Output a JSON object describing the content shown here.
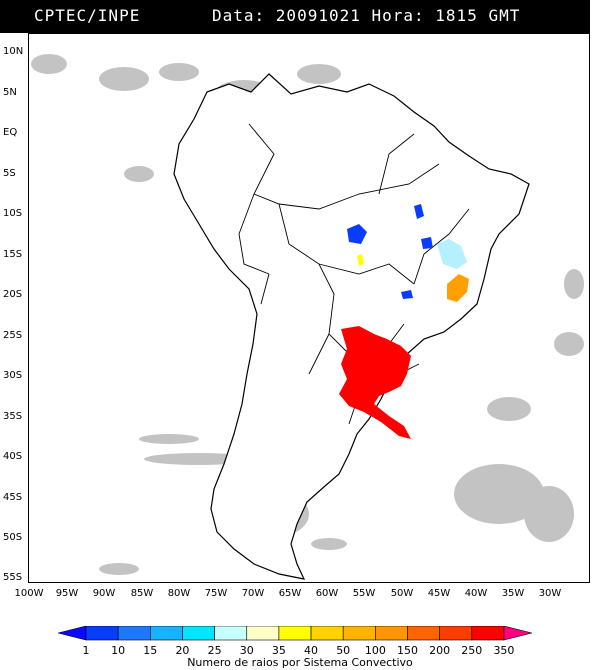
{
  "header": {
    "source": "CPTEC/INPE",
    "datetime": "Data: 20091021 Hora: 1815 GMT"
  },
  "map": {
    "latitude_labels": [
      "10N",
      "5N",
      "EQ",
      "5S",
      "10S",
      "15S",
      "20S",
      "25S",
      "30S",
      "35S",
      "40S",
      "45S",
      "50S",
      "55S"
    ],
    "longitude_labels": [
      "100W",
      "95W",
      "90W",
      "85W",
      "80W",
      "75W",
      "70W",
      "65W",
      "60W",
      "55W",
      "50W",
      "45W",
      "40W",
      "35W",
      "30W"
    ],
    "land_color": "#ffffff",
    "cloud_color": "#b9b9b9",
    "border_color": "#000000"
  },
  "legend": {
    "title": "Numero de raios por Sistema Convectivo",
    "values": [
      "1",
      "10",
      "15",
      "20",
      "25",
      "30",
      "35",
      "40",
      "50",
      "100",
      "150",
      "200",
      "250",
      "350"
    ],
    "colors": [
      "#0a0aff",
      "#0a3cff",
      "#1e78ff",
      "#14b4ff",
      "#00e6ff",
      "#c8ffff",
      "#ffffc8",
      "#ffff00",
      "#ffd200",
      "#ffb400",
      "#ff9600",
      "#ff6400",
      "#ff3c00",
      "#ff0000",
      "#ff0080"
    ]
  },
  "convective_systems": [
    {
      "label": "red-cluster",
      "color": "#ff0000"
    },
    {
      "label": "orange-cluster",
      "color": "#ffa000"
    },
    {
      "label": "cyan-cluster",
      "color": "#b4f0ff"
    },
    {
      "label": "blue-cluster",
      "color": "#0a3cff"
    },
    {
      "label": "yellow-cluster",
      "color": "#ffff00"
    }
  ]
}
